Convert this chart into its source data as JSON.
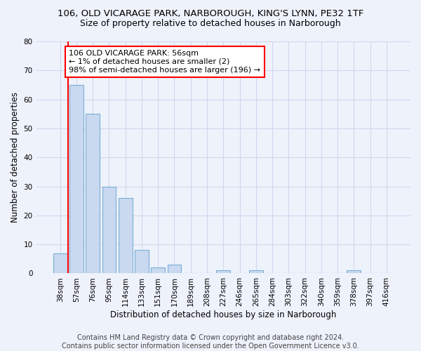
{
  "title_line1": "106, OLD VICARAGE PARK, NARBOROUGH, KING'S LYNN, PE32 1TF",
  "title_line2": "Size of property relative to detached houses in Narborough",
  "xlabel": "Distribution of detached houses by size in Narborough",
  "ylabel": "Number of detached properties",
  "categories": [
    "38sqm",
    "57sqm",
    "76sqm",
    "95sqm",
    "114sqm",
    "133sqm",
    "151sqm",
    "170sqm",
    "189sqm",
    "208sqm",
    "227sqm",
    "246sqm",
    "265sqm",
    "284sqm",
    "303sqm",
    "322sqm",
    "340sqm",
    "359sqm",
    "378sqm",
    "397sqm",
    "416sqm"
  ],
  "values": [
    7,
    65,
    55,
    30,
    26,
    8,
    2,
    3,
    0,
    0,
    1,
    0,
    1,
    0,
    0,
    0,
    0,
    0,
    1,
    0,
    0
  ],
  "bar_color": "#c9d9f0",
  "bar_edge_color": "#7aaed6",
  "ylim": [
    0,
    80
  ],
  "yticks": [
    0,
    10,
    20,
    30,
    40,
    50,
    60,
    70,
    80
  ],
  "annotation_text": "106 OLD VICARAGE PARK: 56sqm\n← 1% of detached houses are smaller (2)\n98% of semi-detached houses are larger (196) →",
  "vline_x_index": 1,
  "box_color": "red",
  "footer_line1": "Contains HM Land Registry data © Crown copyright and database right 2024.",
  "footer_line2": "Contains public sector information licensed under the Open Government Licence v3.0.",
  "background_color": "#eef2fb",
  "grid_color": "#d0d8ee",
  "title_fontsize": 9.5,
  "subtitle_fontsize": 9,
  "axis_label_fontsize": 8.5,
  "tick_fontsize": 7.5,
  "footer_fontsize": 7,
  "annotation_fontsize": 8
}
